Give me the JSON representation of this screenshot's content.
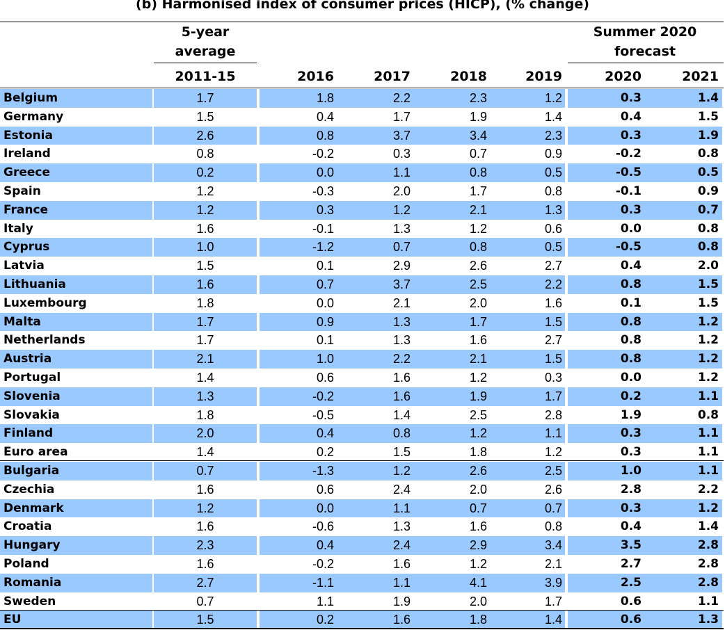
{
  "title": "(b) Harmonised index of consumer prices (HICP), (% change)",
  "header": {
    "avg_group_line1": "5-year",
    "avg_group_line2": "average",
    "forecast_group_line1": "Summer 2020",
    "forecast_group_line2": "forecast",
    "columns": [
      "2011-15",
      "2016",
      "2017",
      "2018",
      "2019",
      "2020",
      "2021"
    ]
  },
  "colors": {
    "row_highlight": "#99c9ff"
  },
  "rows": [
    {
      "name": "Belgium",
      "values": [
        "1.7",
        "1.8",
        "2.2",
        "2.3",
        "1.2",
        "0.3",
        "1.4"
      ],
      "shaded": true
    },
    {
      "name": "Germany",
      "values": [
        "1.5",
        "0.4",
        "1.7",
        "1.9",
        "1.4",
        "0.4",
        "1.5"
      ],
      "shaded": false
    },
    {
      "name": "Estonia",
      "values": [
        "2.6",
        "0.8",
        "3.7",
        "3.4",
        "2.3",
        "0.3",
        "1.9"
      ],
      "shaded": true
    },
    {
      "name": "Ireland",
      "values": [
        "0.8",
        "-0.2",
        "0.3",
        "0.7",
        "0.9",
        "-0.2",
        "0.8"
      ],
      "shaded": false
    },
    {
      "name": "Greece",
      "values": [
        "0.2",
        "0.0",
        "1.1",
        "0.8",
        "0.5",
        "-0.5",
        "0.5"
      ],
      "shaded": true
    },
    {
      "name": "Spain",
      "values": [
        "1.2",
        "-0.3",
        "2.0",
        "1.7",
        "0.8",
        "-0.1",
        "0.9"
      ],
      "shaded": false
    },
    {
      "name": "France",
      "values": [
        "1.2",
        "0.3",
        "1.2",
        "2.1",
        "1.3",
        "0.3",
        "0.7"
      ],
      "shaded": true
    },
    {
      "name": "Italy",
      "values": [
        "1.6",
        "-0.1",
        "1.3",
        "1.2",
        "0.6",
        "0.0",
        "0.8"
      ],
      "shaded": false
    },
    {
      "name": "Cyprus",
      "values": [
        "1.0",
        "-1.2",
        "0.7",
        "0.8",
        "0.5",
        "-0.5",
        "0.8"
      ],
      "shaded": true
    },
    {
      "name": "Latvia",
      "values": [
        "1.5",
        "0.1",
        "2.9",
        "2.6",
        "2.7",
        "0.4",
        "2.0"
      ],
      "shaded": false
    },
    {
      "name": "Lithuania",
      "values": [
        "1.6",
        "0.7",
        "3.7",
        "2.5",
        "2.2",
        "0.8",
        "1.5"
      ],
      "shaded": true
    },
    {
      "name": "Luxembourg",
      "values": [
        "1.8",
        "0.0",
        "2.1",
        "2.0",
        "1.6",
        "0.1",
        "1.5"
      ],
      "shaded": false
    },
    {
      "name": "Malta",
      "values": [
        "1.7",
        "0.9",
        "1.3",
        "1.7",
        "1.5",
        "0.8",
        "1.2"
      ],
      "shaded": true
    },
    {
      "name": "Netherlands",
      "values": [
        "1.7",
        "0.1",
        "1.3",
        "1.6",
        "2.7",
        "0.8",
        "1.2"
      ],
      "shaded": false
    },
    {
      "name": "Austria",
      "values": [
        "2.1",
        "1.0",
        "2.2",
        "2.1",
        "1.5",
        "0.8",
        "1.2"
      ],
      "shaded": true
    },
    {
      "name": "Portugal",
      "values": [
        "1.4",
        "0.6",
        "1.6",
        "1.2",
        "0.3",
        "0.0",
        "1.2"
      ],
      "shaded": false
    },
    {
      "name": "Slovenia",
      "values": [
        "1.3",
        "-0.2",
        "1.6",
        "1.9",
        "1.7",
        "0.2",
        "1.1"
      ],
      "shaded": true
    },
    {
      "name": "Slovakia",
      "values": [
        "1.8",
        "-0.5",
        "1.4",
        "2.5",
        "2.8",
        "1.9",
        "0.8"
      ],
      "shaded": false
    },
    {
      "name": "Finland",
      "values": [
        "2.0",
        "0.4",
        "0.8",
        "1.2",
        "1.1",
        "0.3",
        "1.1"
      ],
      "shaded": true
    },
    {
      "name": "Euro area",
      "values": [
        "1.4",
        "0.2",
        "1.5",
        "1.8",
        "1.2",
        "0.3",
        "1.1"
      ],
      "shaded": false
    },
    {
      "name": "Bulgaria",
      "values": [
        "0.7",
        "-1.3",
        "1.2",
        "2.6",
        "2.5",
        "1.0",
        "1.1"
      ],
      "shaded": true
    },
    {
      "name": "Czechia",
      "values": [
        "1.6",
        "0.6",
        "2.4",
        "2.0",
        "2.6",
        "2.8",
        "2.2"
      ],
      "shaded": false
    },
    {
      "name": "Denmark",
      "values": [
        "1.2",
        "0.0",
        "1.1",
        "0.7",
        "0.7",
        "0.3",
        "1.2"
      ],
      "shaded": true
    },
    {
      "name": "Croatia",
      "values": [
        "1.6",
        "-0.6",
        "1.3",
        "1.6",
        "0.8",
        "0.4",
        "1.4"
      ],
      "shaded": false
    },
    {
      "name": "Hungary",
      "values": [
        "2.3",
        "0.4",
        "2.4",
        "2.9",
        "3.4",
        "3.5",
        "2.8"
      ],
      "shaded": true
    },
    {
      "name": "Poland",
      "values": [
        "1.6",
        "-0.2",
        "1.6",
        "1.2",
        "2.1",
        "2.7",
        "2.8"
      ],
      "shaded": false
    },
    {
      "name": "Romania",
      "values": [
        "2.7",
        "-1.1",
        "1.1",
        "4.1",
        "3.9",
        "2.5",
        "2.8"
      ],
      "shaded": true
    },
    {
      "name": "Sweden",
      "values": [
        "0.7",
        "1.1",
        "1.9",
        "2.0",
        "1.7",
        "0.6",
        "1.1"
      ],
      "shaded": false
    },
    {
      "name": "EU",
      "values": [
        "1.5",
        "0.2",
        "1.6",
        "1.8",
        "1.4",
        "0.6",
        "1.3"
      ],
      "shaded": true
    }
  ]
}
